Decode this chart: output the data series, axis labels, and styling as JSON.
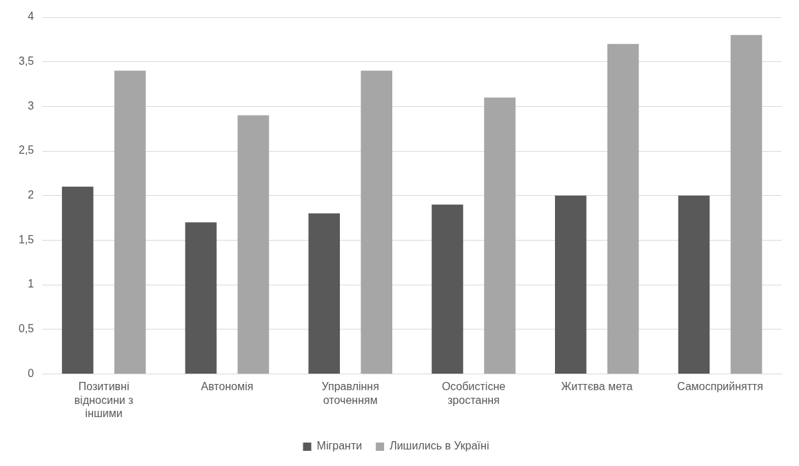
{
  "chart_data": {
    "type": "bar",
    "categories": [
      "Позитивні відносини з іншими",
      "Автономія",
      "Управління оточенням",
      "Особистісне зростання",
      "Життєва мета",
      "Самосприйняття"
    ],
    "series": [
      {
        "name": "Мігранти",
        "color": "#595959",
        "values": [
          2.1,
          1.7,
          1.8,
          1.9,
          2.0,
          2.0
        ]
      },
      {
        "name": "Лишились в Україні",
        "color": "#a6a6a6",
        "values": [
          3.4,
          2.9,
          3.4,
          3.1,
          3.7,
          3.8
        ]
      }
    ],
    "ylim": [
      0,
      4
    ],
    "yticks": [
      0,
      {
        "value": 0.5,
        "label": "0,5"
      },
      1,
      {
        "value": 1.5,
        "label": "1,5"
      },
      2,
      {
        "value": 2.5,
        "label": "2,5"
      },
      3,
      {
        "value": 3.5,
        "label": "3,5"
      },
      4
    ],
    "grid": "y",
    "legend": "bottom"
  }
}
